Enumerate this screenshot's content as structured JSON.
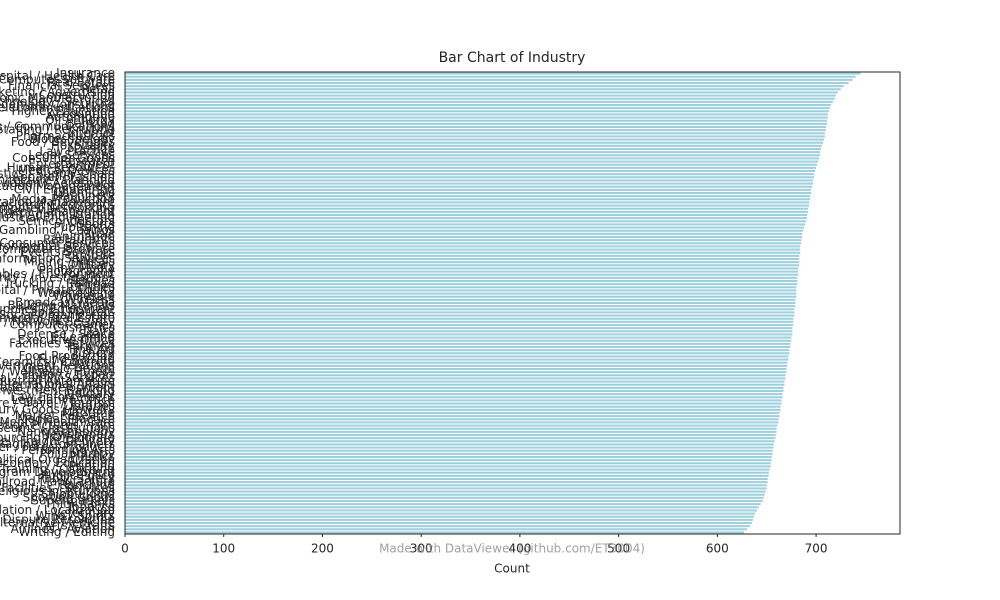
{
  "chart_data": {
    "type": "barh",
    "title": "Bar Chart of Industry",
    "xlabel": "Count",
    "watermark": "Made with DataViewer (github.com/ET3004)",
    "color": "#9fd0dd",
    "categories": [
      "Insurance",
      "Hospital / Health Care",
      "Computer Software",
      "Real Estate",
      "Financial Services",
      "Retail",
      "Marketing / Advertising",
      "Construction",
      "Electrical / Electronic Manufacturing",
      "Information Technology / Services",
      "Management Consulting",
      "Telecommunications",
      "Higher Education",
      "Accounting",
      "Automotive",
      "Oil / Energy",
      "Banking",
      "Public Relations / Communications",
      "Staffing / Recruiting",
      "Internet",
      "Pharmaceuticals",
      "Biotechnology",
      "Food / Beverages",
      "Hospitality",
      "Design",
      "Law Practice",
      "Legal Services",
      "Consumer Goods",
      "Research",
      "Entertainment",
      "Human Resources",
      "Medical Devices",
      "Logistics / Supply Chain",
      "Apparel / Fashion",
      "Architecture / Planning",
      "Aviation / Aerospace",
      "Education Management",
      "Civil Engineering",
      "Chemicals",
      "Machinery",
      "Media Production",
      "Nonprofit Organization Management",
      "Consumer Electronics",
      "Computer Networking",
      "Investment Management",
      "Government Administration",
      "Mechanical / Industrial Engineering",
      "Semiconductors",
      "Sports",
      "Publishing",
      "Gambling / Casinos",
      "Music",
      "Animation",
      "Restaurants",
      "Consumer Services",
      "Environmental Services",
      "Computer Hardware",
      "Events Services",
      "Furniture",
      "Information Services",
      "Mining / Metals",
      "Military",
      "Online Media",
      "Photography",
      "Renewables / Environment",
      "Security / Investigations",
      "Textiles",
      "Transportation / Trucking / Railroad",
      "Utilities",
      "Venture Capital / Private Equity",
      "Warehousing",
      "Wholesale",
      "Wireless",
      "Broadcast Media",
      "Building Materials",
      "Business Supplies / Equipment",
      "Capital Markets",
      "Civic / Social Organization",
      "Commercial Real Estate",
      "Computer / Network Security",
      "Computer Games",
      "Cosmetics",
      "Dairy",
      "Defense / Space",
      "E-Learning",
      "Executive Office",
      "Facilities Services",
      "Farming",
      "Fine Art",
      "Fishery",
      "Food Production",
      "Fund-Raising",
      "Glass / Ceramics / Concrete",
      "Government Relations",
      "Graphic Design",
      "Health / Wellness / Fitness",
      "Import / Export",
      "Individual / Family Services",
      "Industrial Automation",
      "International Affairs",
      "International Trade / Development",
      "Investment Banking",
      "Judiciary",
      "Law Enforcement",
      "Legislative Office",
      "Leisure / Travel / Tourism",
      "Libraries",
      "Luxury Goods / Jewelry",
      "Maritime",
      "Market Research",
      "Medical Practice",
      "Mental Health Care",
      "Motion Pictures / Film",
      "Museums / Institutions",
      "Nanotechnology",
      "Newspapers",
      "Outsourcing / Offshoring",
      "Package / Freight Delivery",
      "Packaging / Containers",
      "Paper / Forest Products",
      "Performing Arts",
      "Philanthropy",
      "Plastics",
      "Political Organization",
      "Primary / Secondary Education",
      "Printing",
      "Professional Training / Coaching",
      "Program Development",
      "Public Policy",
      "Public Safety",
      "Railroad Manufacture",
      "Ranching",
      "Recreational Facilities / Services",
      "Religious Institutions",
      "Shipbuilding",
      "Sporting Goods",
      "Supermarkets",
      "Think Tanks",
      "Tobacco",
      "Translation / Localization",
      "Veterinary",
      "Wine / Spirits",
      "Alternative Dispute Resolution",
      "Alternative Medicine",
      "Arts / Crafts",
      "Airlines / Aviation",
      "Writing / Editing"
    ],
    "values": [
      745,
      740,
      737,
      733,
      728,
      725,
      722,
      720,
      719,
      717,
      715,
      714,
      713,
      712,
      712,
      711,
      711,
      710,
      710,
      709,
      709,
      708,
      707,
      706,
      705,
      704,
      704,
      703,
      702,
      701,
      700,
      699,
      698,
      698,
      697,
      697,
      696,
      695,
      695,
      694,
      694,
      693,
      693,
      692,
      692,
      691,
      691,
      690,
      689,
      688,
      687,
      686,
      686,
      685,
      685,
      684,
      684,
      684,
      683,
      683,
      683,
      683,
      682,
      682,
      682,
      681,
      681,
      681,
      680,
      680,
      680,
      680,
      679,
      679,
      679,
      678,
      678,
      678,
      677,
      677,
      677,
      676,
      676,
      676,
      675,
      675,
      674,
      674,
      673,
      673,
      672,
      672,
      671,
      671,
      670,
      670,
      669,
      669,
      668,
      668,
      667,
      667,
      666,
      666,
      665,
      665,
      664,
      664,
      663,
      663,
      662,
      662,
      661,
      660,
      660,
      659,
      659,
      658,
      657,
      657,
      656,
      656,
      655,
      655,
      654,
      654,
      653,
      652,
      652,
      651,
      651,
      650,
      650,
      649,
      648,
      647,
      646,
      644,
      642,
      640,
      638,
      637,
      636,
      635,
      633,
      630,
      627
    ],
    "xlim": [
      0,
      785
    ],
    "xticks": [
      0,
      100,
      200,
      300,
      400,
      500,
      600,
      700
    ]
  }
}
